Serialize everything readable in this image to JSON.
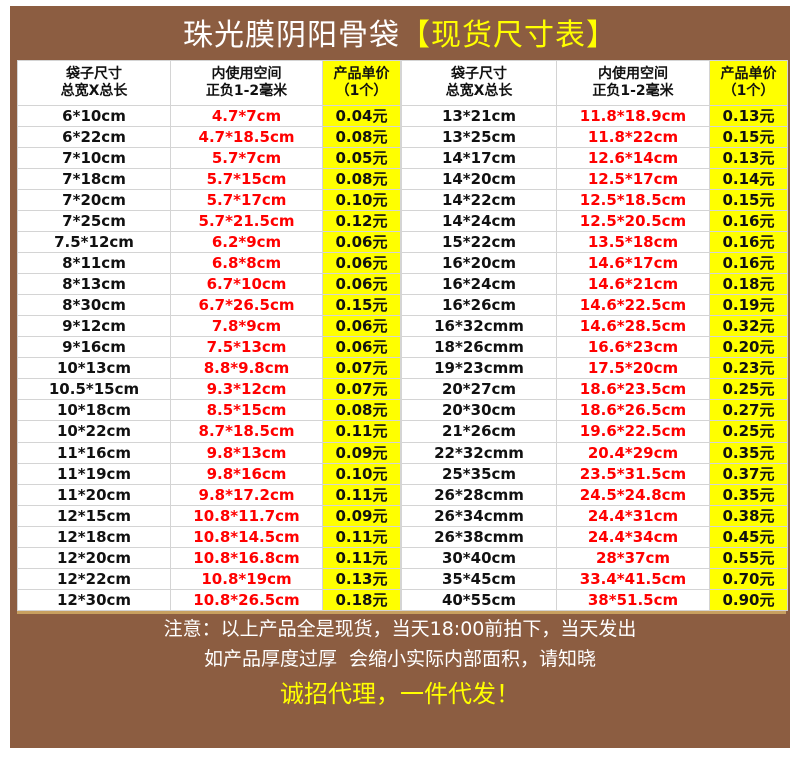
{
  "title": {
    "main": "珠光膜阴阳骨袋",
    "highlight": "【现货尺寸表】"
  },
  "headers": {
    "size": [
      "袋子尺寸",
      "总宽X总长"
    ],
    "inner": [
      "内使用空间",
      "正负1-2毫米"
    ],
    "price": [
      "产品单价",
      "（1个）"
    ]
  },
  "left_rows": [
    [
      "6*10cm",
      "4.7*7cm",
      "0.04元"
    ],
    [
      "6*22cm",
      "4.7*18.5cm",
      "0.08元"
    ],
    [
      "7*10cm",
      "5.7*7cm",
      "0.05元"
    ],
    [
      "7*18cm",
      "5.7*15cm",
      "0.08元"
    ],
    [
      "7*20cm",
      "5.7*17cm",
      "0.10元"
    ],
    [
      "7*25cm",
      "5.7*21.5cm",
      "0.12元"
    ],
    [
      "7.5*12cm",
      "6.2*9cm",
      "0.06元"
    ],
    [
      "8*11cm",
      "6.8*8cm",
      "0.06元"
    ],
    [
      "8*13cm",
      "6.7*10cm",
      "0.06元"
    ],
    [
      "8*30cm",
      "6.7*26.5cm",
      "0.15元"
    ],
    [
      "9*12cm",
      "7.8*9cm",
      "0.06元"
    ],
    [
      "9*16cm",
      "7.5*13cm",
      "0.06元"
    ],
    [
      "10*13cm",
      "8.8*9.8cm",
      "0.07元"
    ],
    [
      "10.5*15cm",
      "9.3*12cm",
      "0.07元"
    ],
    [
      "10*18cm",
      "8.5*15cm",
      "0.08元"
    ],
    [
      "10*22cm",
      "8.7*18.5cm",
      "0.11元"
    ],
    [
      "11*16cm",
      "9.8*13cm",
      "0.09元"
    ],
    [
      "11*19cm",
      "9.8*16cm",
      "0.10元"
    ],
    [
      "11*20cm",
      "9.8*17.2cm",
      "0.11元"
    ],
    [
      "12*15cm",
      "10.8*11.7cm",
      "0.09元"
    ],
    [
      "12*18cm",
      "10.8*14.5cm",
      "0.11元"
    ],
    [
      "12*20cm",
      "10.8*16.8cm",
      "0.11元"
    ],
    [
      "12*22cm",
      "10.8*19cm",
      "0.13元"
    ],
    [
      "12*30cm",
      "10.8*26.5cm",
      "0.18元"
    ]
  ],
  "right_rows": [
    [
      "13*21cm",
      "11.8*18.9cm",
      "0.13元"
    ],
    [
      "13*25cm",
      "11.8*22cm",
      "0.15元"
    ],
    [
      "14*17cm",
      "12.6*14cm",
      "0.13元"
    ],
    [
      "14*20cm",
      "12.5*17cm",
      "0.14元"
    ],
    [
      "14*22cm",
      "12.5*18.5cm",
      "0.15元"
    ],
    [
      "14*24cm",
      "12.5*20.5cm",
      "0.16元"
    ],
    [
      "15*22cm",
      "13.5*18cm",
      "0.16元"
    ],
    [
      "16*20cm",
      "14.6*17cm",
      "0.16元"
    ],
    [
      "16*24cm",
      "14.6*21cm",
      "0.18元"
    ],
    [
      "16*26cm",
      "14.6*22.5cm",
      "0.19元"
    ],
    [
      "16*32cmm",
      "14.6*28.5cm",
      "0.32元"
    ],
    [
      "18*26cmm",
      "16.6*23cm",
      "0.20元"
    ],
    [
      "19*23cmm",
      "17.5*20cm",
      "0.23元"
    ],
    [
      "20*27cm",
      "18.6*23.5cm",
      "0.25元"
    ],
    [
      "20*30cm",
      "18.6*26.5cm",
      "0.27元"
    ],
    [
      "21*26cm",
      "19.6*22.5cm",
      "0.25元"
    ],
    [
      "22*32cmm",
      "20.4*29cm",
      "0.35元"
    ],
    [
      "25*35cm",
      "23.5*31.5cm",
      "0.37元"
    ],
    [
      "26*28cmm",
      "24.5*24.8cm",
      "0.35元"
    ],
    [
      "26*34cmm",
      "24.4*31cm",
      "0.38元"
    ],
    [
      "26*38cmm",
      "24.4*34cm",
      "0.45元"
    ],
    [
      "30*40cm",
      "28*37cm",
      "0.55元"
    ],
    [
      "35*45cm",
      "33.4*41.5cm",
      "0.70元"
    ],
    [
      "40*55cm",
      "38*51.5cm",
      "0.90元"
    ]
  ],
  "footer": {
    "line1": "注意：以上产品全是现货，当天18:00前拍下，当天发出",
    "line2": "如产品厚度过厚  会缩小实际内部面积，请知晓",
    "line3": "诚招代理，一件代发！"
  },
  "colors": {
    "background": "#8c5d41",
    "highlight": "#ffff00",
    "inner_size_text": "#ff0000",
    "price_cell": "#ffff00"
  }
}
